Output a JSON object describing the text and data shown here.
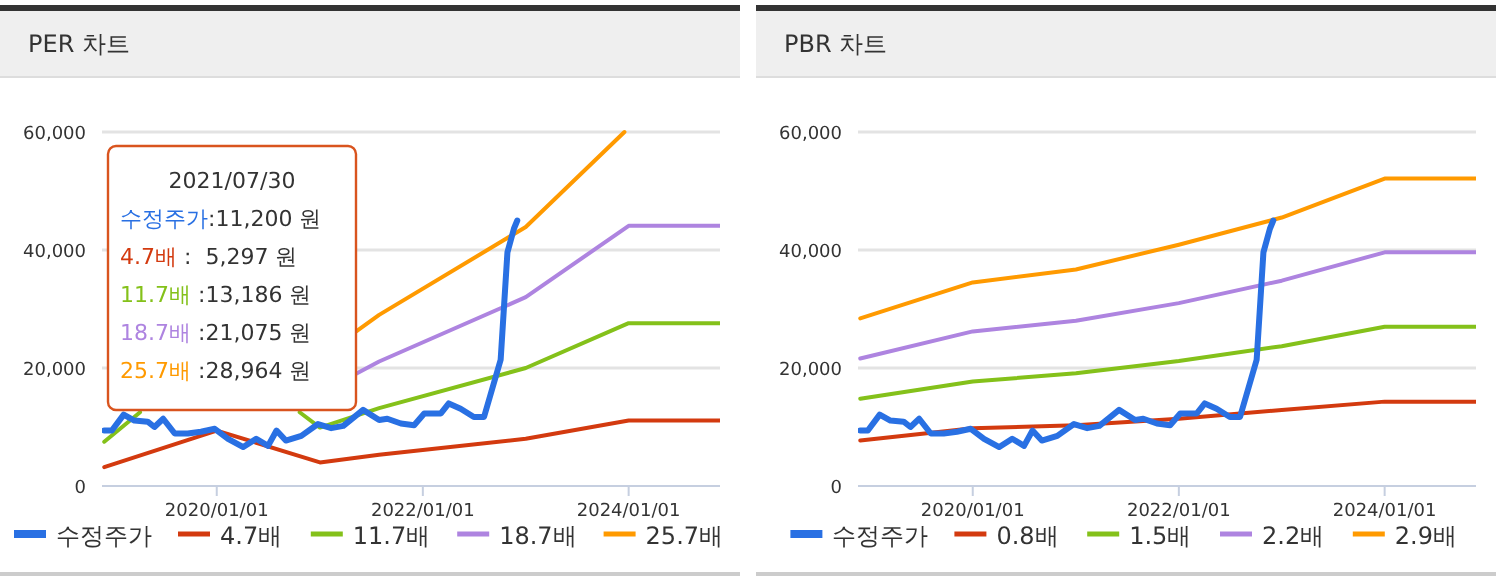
{
  "chart_data": [
    {
      "type": "line",
      "title": "PER 차트",
      "xlim": [
        "2018-11-20",
        "2024-11-20"
      ],
      "ylim": [
        0,
        60000
      ],
      "xticks": [
        {
          "value": "2020-01-01",
          "label": "2020/01/01"
        },
        {
          "value": "2022-01-01",
          "label": "2022/01/01"
        },
        {
          "value": "2024-01-01",
          "label": "2024/01/01"
        }
      ],
      "yticks": [
        0,
        {
          "value": 20000,
          "label": "20,000"
        },
        {
          "value": 40000,
          "label": "40,000"
        },
        {
          "value": 60000,
          "label": "60,000"
        }
      ],
      "grid": "y",
      "legend": "bottom",
      "line_style": "solid",
      "marker": "none",
      "annotations": [
        "2021/07/30",
        "수정주가:11,200 원",
        "4.7배 :  5,297 원",
        "11.7배 :13,186 원",
        "18.7배 :21,075 원",
        "25.7배 :28,964 원"
      ],
      "series": [
        {
          "name": "수정주가",
          "color": "#2970e3",
          "x": [
            "2018-11-28",
            "2018-12-25",
            "2019-02-05",
            "2019-03-15",
            "2019-05-01",
            "2019-05-25",
            "2019-06-25",
            "2019-08-05",
            "2019-09-20",
            "2019-11-06",
            "2019-12-25",
            "2020-02-10",
            "2020-04-04",
            "2020-05-20",
            "2020-07-01",
            "2020-07-31",
            "2020-09-02",
            "2020-10-27",
            "2020-12-25",
            "2021-02-10",
            "2021-03-25",
            "2021-06-03",
            "2021-07-30",
            "2021-08-28",
            "2021-10-15",
            "2021-12-01",
            "2022-01-06",
            "2022-03-06",
            "2022-04-03",
            "2022-05-15",
            "2022-07-01",
            "2022-08-06",
            "2022-10-04",
            "2022-10-28",
            "2022-11-20",
            "2022-12-02"
          ],
          "values": [
            9400,
            9400,
            12100,
            11100,
            10900,
            10000,
            11400,
            8900,
            8900,
            9200,
            9700,
            8000,
            6600,
            8000,
            6800,
            9400,
            7700,
            8500,
            10500,
            9800,
            10200,
            12900,
            11200,
            11400,
            10600,
            10300,
            12300,
            12300,
            14000,
            13100,
            11700,
            11700,
            21400,
            39600,
            43600,
            45000
          ]
        },
        {
          "name": "4.7배",
          "color": "#d33a0f",
          "x": [
            "2018-11-28",
            "2020-01-01",
            "2021-01-01",
            "2021-07-30",
            "2023-01-01",
            "2024-01-01",
            "2024-11-20"
          ],
          "values": [
            3200,
            9400,
            4000,
            5300,
            8000,
            11100,
            11100
          ]
        },
        {
          "name": "11.7배",
          "color": "#84c11a",
          "x": [
            "2018-11-28",
            "2019-04-04",
            "2020-01-01",
            "2020-10-21",
            "2021-01-01",
            "2021-07-30",
            "2023-01-01",
            "2024-01-01",
            "2024-11-20"
          ],
          "values": [
            7500,
            12500,
            null,
            12500,
            9900,
            13200,
            20000,
            27600,
            27600
          ]
        },
        {
          "name": "18.7배",
          "color": "#ae84e0",
          "x": [
            "2021-05-01",
            "2021-07-30",
            "2023-01-01",
            "2024-01-01",
            "2024-11-20"
          ],
          "values": [
            18800,
            21100,
            32000,
            44100,
            44100
          ]
        },
        {
          "name": "25.7배",
          "color": "#ff9a00",
          "x": [
            "2021-05-01",
            "2021-07-30",
            "2023-01-01",
            "2023-12-17"
          ],
          "values": [
            25900,
            29000,
            43900,
            60000
          ]
        }
      ]
    },
    {
      "type": "line",
      "title": "PBR 차트",
      "xlim": [
        "2018-11-20",
        "2024-11-20"
      ],
      "ylim": [
        0,
        60000
      ],
      "xticks": [
        {
          "value": "2020-01-01",
          "label": "2020/01/01"
        },
        {
          "value": "2022-01-01",
          "label": "2022/01/01"
        },
        {
          "value": "2024-01-01",
          "label": "2024/01/01"
        }
      ],
      "yticks": [
        0,
        {
          "value": 20000,
          "label": "20,000"
        },
        {
          "value": 40000,
          "label": "40,000"
        },
        {
          "value": 60000,
          "label": "60,000"
        }
      ],
      "grid": "y",
      "legend": "bottom",
      "line_style": "solid",
      "marker": "none",
      "x": [
        "2018-11-28",
        "2020-01-01",
        "2021-01-01",
        "2022-01-01",
        "2023-01-01",
        "2024-01-01",
        "2024-11-20"
      ],
      "series": [
        {
          "name": "수정주가",
          "color": "#2970e3",
          "x": [
            "2018-11-28",
            "2018-12-25",
            "2019-02-05",
            "2019-03-15",
            "2019-05-01",
            "2019-05-25",
            "2019-06-25",
            "2019-08-05",
            "2019-09-20",
            "2019-11-06",
            "2019-12-25",
            "2020-02-10",
            "2020-04-04",
            "2020-05-20",
            "2020-07-01",
            "2020-07-31",
            "2020-09-02",
            "2020-10-27",
            "2020-12-25",
            "2021-02-10",
            "2021-03-25",
            "2021-06-03",
            "2021-07-30",
            "2021-08-28",
            "2021-10-15",
            "2021-12-01",
            "2022-01-06",
            "2022-03-06",
            "2022-04-03",
            "2022-05-15",
            "2022-07-01",
            "2022-08-06",
            "2022-10-04",
            "2022-10-28",
            "2022-11-20",
            "2022-12-02"
          ],
          "values": [
            9400,
            9400,
            12100,
            11100,
            10900,
            10000,
            11400,
            8900,
            8900,
            9200,
            9700,
            8000,
            6600,
            8000,
            6800,
            9400,
            7700,
            8500,
            10500,
            9800,
            10200,
            12900,
            11200,
            11400,
            10600,
            10300,
            12300,
            12300,
            14000,
            13100,
            11700,
            11700,
            21400,
            39600,
            43600,
            45000
          ]
        },
        {
          "name": "0.8배",
          "color": "#d33a0f",
          "values": [
            7700,
            9800,
            10300,
            11400,
            12900,
            14300,
            14300
          ]
        },
        {
          "name": "1.5배",
          "color": "#84c11a",
          "values": [
            14800,
            17700,
            19100,
            21200,
            23700,
            27000,
            27000
          ]
        },
        {
          "name": "2.2배",
          "color": "#ae84e0",
          "values": [
            21600,
            26200,
            28000,
            31000,
            34800,
            39600,
            39600
          ]
        },
        {
          "name": "2.9배",
          "color": "#ff9a00",
          "values": [
            28400,
            34500,
            36700,
            40900,
            45500,
            52100,
            52100
          ]
        }
      ]
    }
  ]
}
